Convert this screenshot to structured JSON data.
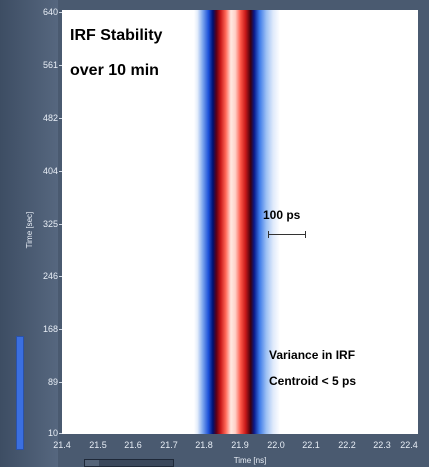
{
  "title": {
    "line1": "IRF Stability",
    "line2": "over 10 min"
  },
  "annotations": {
    "scale_label": "100 ps",
    "variance_line1": "Variance in IRF",
    "variance_line2": "Centroid < 5 ps"
  },
  "axes": {
    "y_label": "Time [sec]",
    "y_ticks": [
      "640",
      "561",
      "482",
      "404",
      "325",
      "246",
      "168",
      "89",
      "10"
    ],
    "x_label": "Time [ns]",
    "x_ticks": [
      "21.4",
      "21.5",
      "21.6",
      "21.7",
      "21.8",
      "21.9",
      "22.0",
      "22.1",
      "22.2",
      "22.3",
      "22.4"
    ]
  },
  "colors": {
    "frame": "#4a5a70",
    "plot_background": "#ffffff",
    "peak_red": "#c81818",
    "flank_blue": "#1a4fd8",
    "scale_indicator": "#3b6fe0"
  }
}
